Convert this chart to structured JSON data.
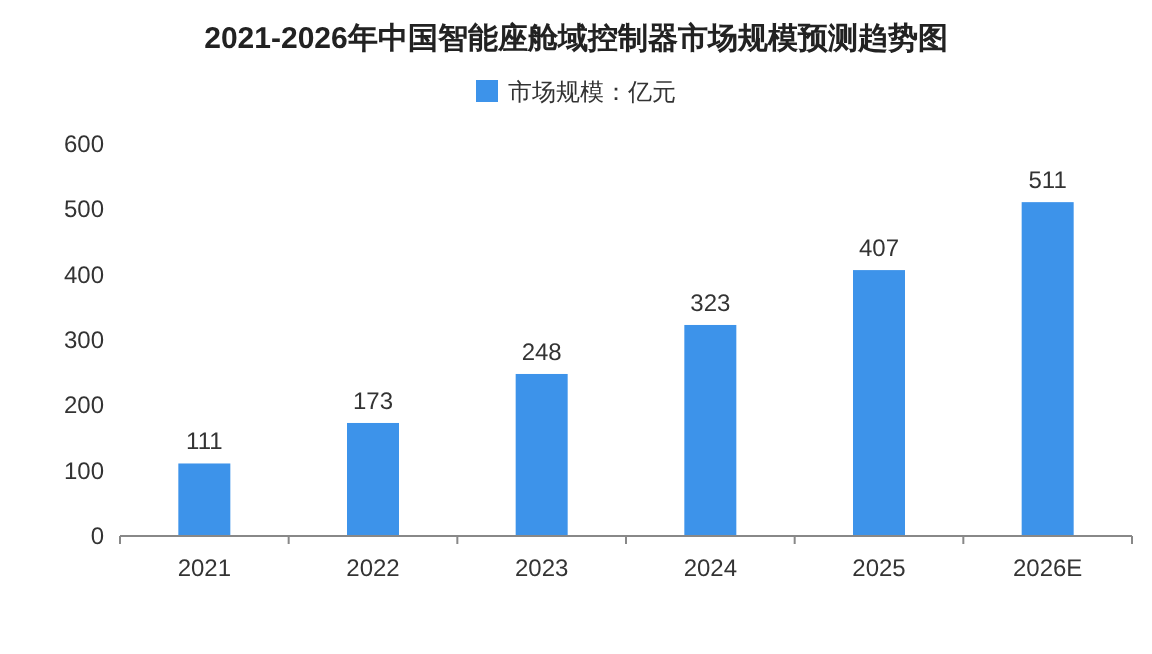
{
  "chart_data": {
    "type": "bar",
    "title": "2021-2026年中国智能座舱域控制器市场规模预测趋势图",
    "categories": [
      "2021",
      "2022",
      "2023",
      "2024",
      "2025",
      "2026E"
    ],
    "series": [
      {
        "name": "市场规模：亿元",
        "color": "#3d93ea",
        "values": [
          111,
          173,
          248,
          323,
          407,
          511
        ]
      }
    ],
    "ylim": [
      0,
      600
    ],
    "yticks": [
      0,
      100,
      200,
      300,
      400,
      500,
      600
    ],
    "data_labels": true,
    "legend": "top"
  }
}
